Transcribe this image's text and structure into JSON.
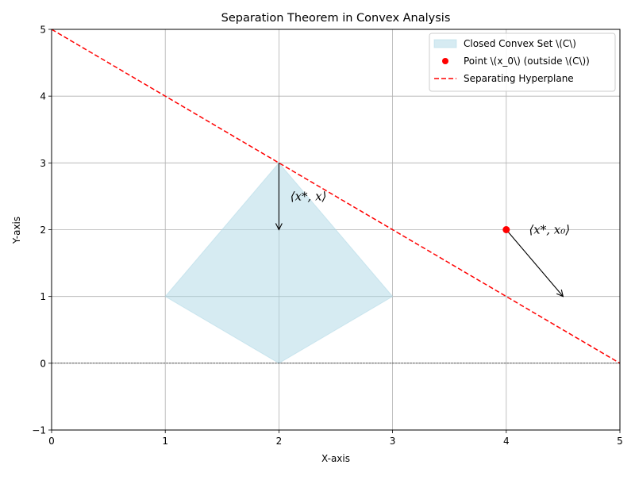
{
  "chart_data": {
    "type": "line",
    "title": "Separation Theorem in Convex Analysis",
    "xlabel": "X-axis",
    "ylabel": "Y-axis",
    "xlim": [
      0,
      5
    ],
    "ylim": [
      -1,
      5
    ],
    "xticks": [
      0,
      1,
      2,
      3,
      4,
      5
    ],
    "yticks": [
      -1,
      0,
      1,
      2,
      3,
      4,
      5
    ],
    "xtick_labels": [
      "0",
      "1",
      "2",
      "3",
      "4",
      "5"
    ],
    "ytick_labels": [
      "−1",
      "0",
      "1",
      "2",
      "3",
      "4",
      "5"
    ],
    "grid": true,
    "legend_position": "top-right",
    "series": [
      {
        "name": "Closed Convex Set \\(C\\)",
        "kind": "polygon",
        "color": "#add8e6",
        "points": [
          [
            2,
            3
          ],
          [
            3,
            1
          ],
          [
            2,
            0
          ],
          [
            1,
            1
          ]
        ]
      },
      {
        "name": "Point \\(x_0\\) (outside \\(C\\))",
        "kind": "point",
        "color": "#ff0000",
        "points": [
          [
            4,
            2
          ]
        ]
      },
      {
        "name": "Separating Hyperplane",
        "kind": "dashed-line",
        "color": "#ff0000",
        "points": [
          [
            0,
            5
          ],
          [
            5,
            0
          ]
        ]
      }
    ],
    "reference_lines": [
      {
        "kind": "horizontal-dashed",
        "y": 0,
        "color": "#000000"
      }
    ],
    "arrows": [
      {
        "from": [
          2,
          3
        ],
        "to": [
          2,
          2
        ],
        "color": "#000000"
      },
      {
        "from": [
          4,
          2
        ],
        "to": [
          4.5,
          1
        ],
        "color": "#000000"
      }
    ],
    "annotations": [
      {
        "text": "⟨x*, x⟩",
        "x": 2.1,
        "y": 2.5
      },
      {
        "text": "⟨x*, x₀⟩",
        "x": 4.2,
        "y": 2.0
      }
    ]
  }
}
